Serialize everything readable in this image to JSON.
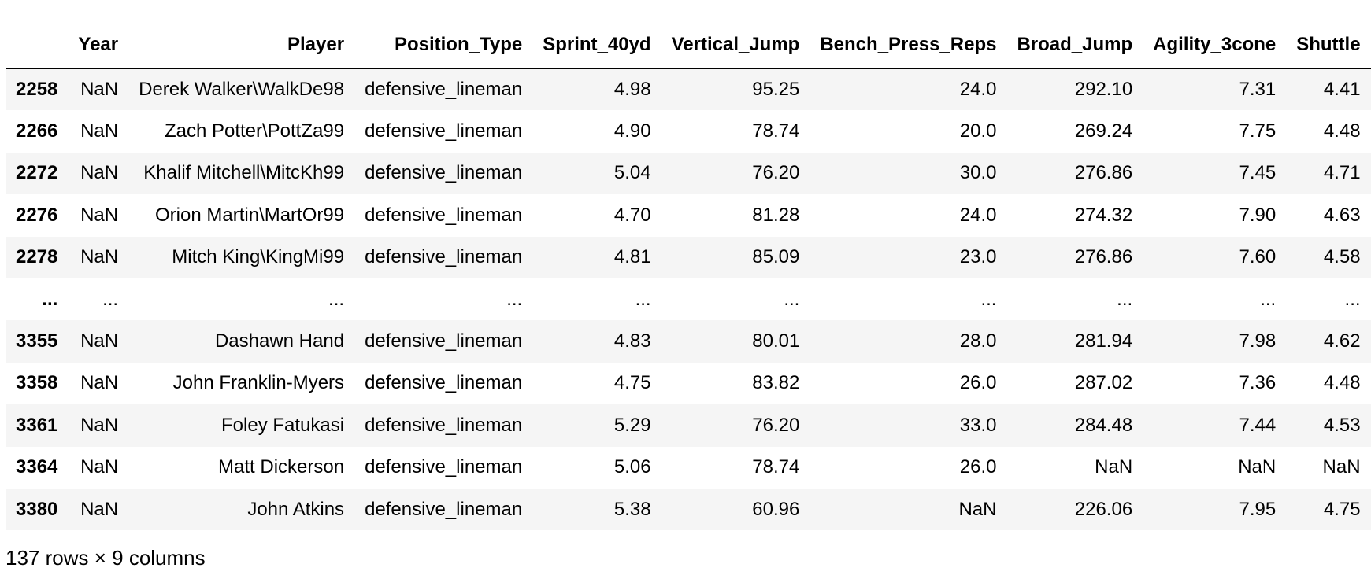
{
  "table": {
    "index_header": "",
    "columns": [
      "Year",
      "Player",
      "Position_Type",
      "Sprint_40yd",
      "Vertical_Jump",
      "Bench_Press_Reps",
      "Broad_Jump",
      "Agility_3cone",
      "Shuttle"
    ],
    "rows": [
      {
        "index": "2258",
        "cells": [
          "NaN",
          "Derek Walker\\WalkDe98",
          "defensive_lineman",
          "4.98",
          "95.25",
          "24.0",
          "292.10",
          "7.31",
          "4.41"
        ]
      },
      {
        "index": "2266",
        "cells": [
          "NaN",
          "Zach Potter\\PottZa99",
          "defensive_lineman",
          "4.90",
          "78.74",
          "20.0",
          "269.24",
          "7.75",
          "4.48"
        ]
      },
      {
        "index": "2272",
        "cells": [
          "NaN",
          "Khalif Mitchell\\MitcKh99",
          "defensive_lineman",
          "5.04",
          "76.20",
          "30.0",
          "276.86",
          "7.45",
          "4.71"
        ]
      },
      {
        "index": "2276",
        "cells": [
          "NaN",
          "Orion Martin\\MartOr99",
          "defensive_lineman",
          "4.70",
          "81.28",
          "24.0",
          "274.32",
          "7.90",
          "4.63"
        ]
      },
      {
        "index": "2278",
        "cells": [
          "NaN",
          "Mitch King\\KingMi99",
          "defensive_lineman",
          "4.81",
          "85.09",
          "23.0",
          "276.86",
          "7.60",
          "4.58"
        ]
      },
      {
        "index": "...",
        "cells": [
          "...",
          "...",
          "...",
          "...",
          "...",
          "...",
          "...",
          "...",
          "..."
        ]
      },
      {
        "index": "3355",
        "cells": [
          "NaN",
          "Dashawn Hand",
          "defensive_lineman",
          "4.83",
          "80.01",
          "28.0",
          "281.94",
          "7.98",
          "4.62"
        ]
      },
      {
        "index": "3358",
        "cells": [
          "NaN",
          "John Franklin-Myers",
          "defensive_lineman",
          "4.75",
          "83.82",
          "26.0",
          "287.02",
          "7.36",
          "4.48"
        ]
      },
      {
        "index": "3361",
        "cells": [
          "NaN",
          "Foley Fatukasi",
          "defensive_lineman",
          "5.29",
          "76.20",
          "33.0",
          "284.48",
          "7.44",
          "4.53"
        ]
      },
      {
        "index": "3364",
        "cells": [
          "NaN",
          "Matt Dickerson",
          "defensive_lineman",
          "5.06",
          "78.74",
          "26.0",
          "NaN",
          "NaN",
          "NaN"
        ]
      },
      {
        "index": "3380",
        "cells": [
          "NaN",
          "John Atkins",
          "defensive_lineman",
          "5.38",
          "60.96",
          "NaN",
          "226.06",
          "7.95",
          "4.75"
        ]
      }
    ]
  },
  "footer": {
    "shape_text": "137 rows × 9 columns"
  },
  "colors": {
    "stripe": "#f5f5f5",
    "header_border": "#000000"
  }
}
